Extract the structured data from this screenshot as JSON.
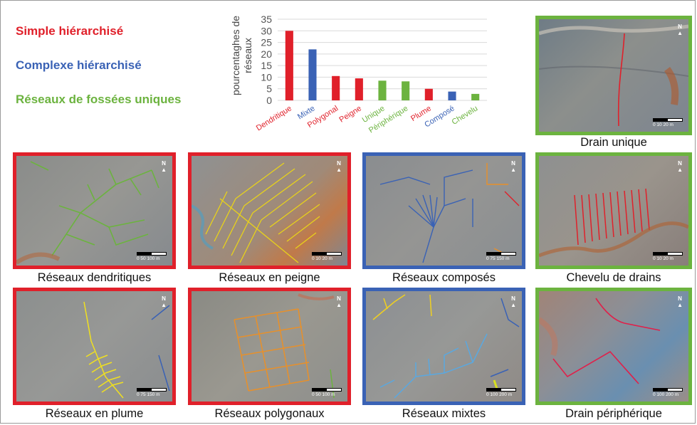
{
  "legend": {
    "simple": {
      "label": "Simple hiérarchisé",
      "color": "#e0202a"
    },
    "complex": {
      "label": "Complexe hiérarchisé",
      "color": "#3a62b5"
    },
    "unique": {
      "label": "Réseaux de fossées uniques",
      "color": "#6cb33f"
    }
  },
  "chart_data": {
    "type": "bar",
    "ylabel": "pourcentaghes de réseaux",
    "ylim": [
      0,
      35
    ],
    "yticks": [
      0,
      5,
      10,
      15,
      20,
      25,
      30,
      35
    ],
    "grid": true,
    "categories": [
      "Dendritique",
      "Mixte",
      "Polygonal",
      "Peigne",
      "Unique",
      "Périphérique",
      "Plume",
      "Composé",
      "Chevelu"
    ],
    "values": [
      30,
      22,
      10.5,
      9.5,
      8.5,
      8.2,
      5,
      3.8,
      2.8
    ],
    "colors": [
      "#e0202a",
      "#3a62b5",
      "#e0202a",
      "#e0202a",
      "#6cb33f",
      "#6cb33f",
      "#e0202a",
      "#3a62b5",
      "#6cb33f"
    ]
  },
  "panels": {
    "drain_unique": {
      "caption": "Drain unique",
      "scale": "0 10 20 m"
    },
    "dendritiques": {
      "caption": "Réseaux dendritiques",
      "scale": "0 50 100 m"
    },
    "peigne": {
      "caption": "Réseaux en peigne",
      "scale": "0 10 20 m"
    },
    "composes": {
      "caption": "Réseaux composés",
      "scale": "0 75 150 m"
    },
    "chevelu": {
      "caption": "Chevelu de drains",
      "scale": "0 10 20 m"
    },
    "plume": {
      "caption": "Réseaux en plume",
      "scale": "0 75 150 m"
    },
    "polygonaux": {
      "caption": "Réseaux polygonaux",
      "scale": "0 50 100 m"
    },
    "mixtes": {
      "caption": "Réseaux mixtes",
      "scale": "0 100 200 m"
    },
    "peripherique": {
      "caption": "Drain périphérique",
      "scale": "0 100 200 m"
    }
  },
  "north_label": "N"
}
